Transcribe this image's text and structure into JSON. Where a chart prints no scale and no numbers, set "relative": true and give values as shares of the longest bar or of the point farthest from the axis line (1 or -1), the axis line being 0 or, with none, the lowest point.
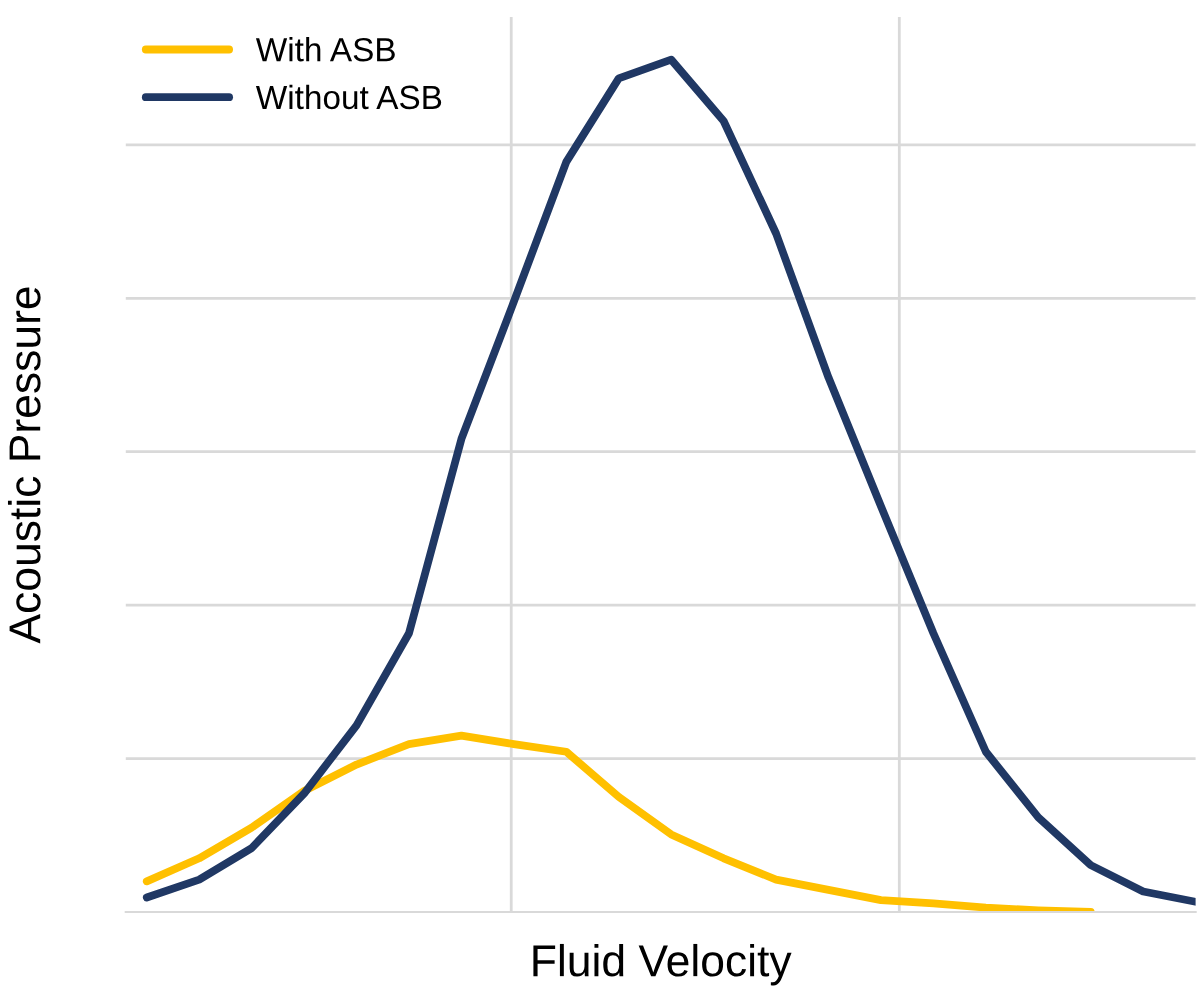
{
  "chart_data": {
    "type": "line",
    "relative": true,
    "xlabel": "Fluid Velocity",
    "ylabel": "Acoustic Pressure",
    "categories": [
      null,
      null,
      null,
      null,
      null,
      null,
      null,
      null,
      null,
      null,
      null,
      null,
      null,
      null,
      null,
      null,
      null,
      null,
      null,
      null,
      null
    ],
    "series": [
      {
        "name": "With ASB",
        "color": "#ffc000",
        "values": [
          0.036,
          0.063,
          0.099,
          0.142,
          0.173,
          0.197,
          0.207,
          0.197,
          0.188,
          0.135,
          0.091,
          0.063,
          0.038,
          0.026,
          0.014,
          0.01,
          0.005,
          0.002,
          0.0,
          null,
          null
        ]
      },
      {
        "name": "Without ASB",
        "color": "#203864",
        "values": [
          0.017,
          0.038,
          0.075,
          0.139,
          0.219,
          0.327,
          0.555,
          0.716,
          0.88,
          0.978,
          1.0,
          0.928,
          0.796,
          0.627,
          0.476,
          0.327,
          0.188,
          0.111,
          0.055,
          0.024,
          0.012
        ]
      }
    ],
    "grid": true,
    "legend": "top left",
    "marker": "none",
    "line_style": "solid"
  }
}
